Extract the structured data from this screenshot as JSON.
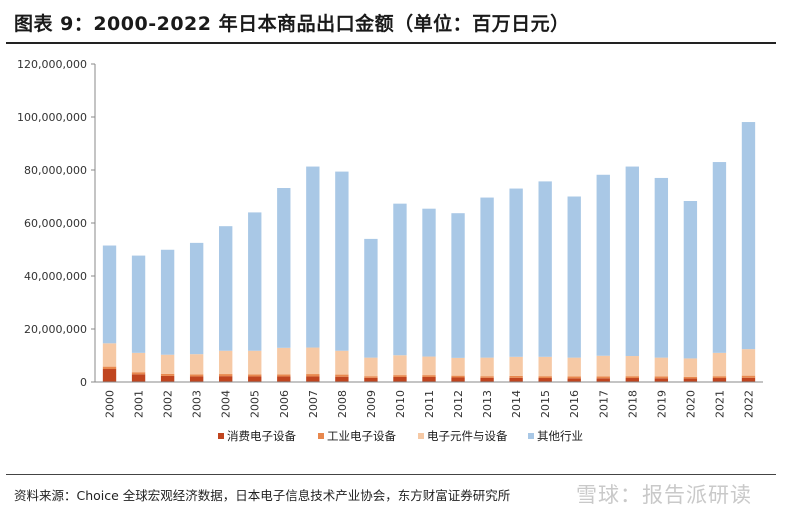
{
  "title": "图表 9：2000-2022 年日本商品出口金额（单位：百万日元）",
  "source": "资料来源：Choice 全球宏观经济数据，日本电子信息技术产业协会，东方财富证券研究所",
  "watermark": "雪球：报告派研读",
  "chart_data": {
    "type": "bar",
    "stacked": true,
    "categories": [
      "2000",
      "2001",
      "2002",
      "2003",
      "2004",
      "2005",
      "2006",
      "2007",
      "2008",
      "2009",
      "2010",
      "2011",
      "2012",
      "2013",
      "2014",
      "2015",
      "2016",
      "2017",
      "2018",
      "2019",
      "2020",
      "2021",
      "2022"
    ],
    "series": [
      {
        "name": "消费电子设备",
        "color": "#c0451f",
        "values": [
          4900000,
          2900000,
          2300000,
          2100000,
          2200000,
          2100000,
          2100000,
          2100000,
          2000000,
          1600000,
          1900000,
          1900000,
          1700000,
          1600000,
          1600000,
          1500000,
          1400000,
          1400000,
          1500000,
          1400000,
          1300000,
          1500000,
          1600000
        ]
      },
      {
        "name": "工业电子设备",
        "color": "#e8884e",
        "values": [
          900000,
          800000,
          800000,
          800000,
          800000,
          800000,
          800000,
          900000,
          800000,
          600000,
          700000,
          700000,
          700000,
          600000,
          700000,
          700000,
          700000,
          700000,
          700000,
          700000,
          600000,
          700000,
          800000
        ]
      },
      {
        "name": "电子元件与设备",
        "color": "#f6c9a5",
        "values": [
          8800000,
          7300000,
          7200000,
          7600000,
          8800000,
          8900000,
          10000000,
          10000000,
          9000000,
          7000000,
          7500000,
          7000000,
          6700000,
          7000000,
          7200000,
          7300000,
          7100000,
          7800000,
          7600000,
          7100000,
          7000000,
          8800000,
          10000000
        ]
      },
      {
        "name": "其他行业",
        "color": "#a9c8e6",
        "values": [
          36900000,
          36700000,
          39600000,
          42000000,
          47000000,
          52200000,
          60300000,
          68300000,
          67600000,
          44800000,
          57200000,
          55800000,
          54600000,
          60400000,
          63500000,
          66200000,
          60800000,
          68300000,
          71500000,
          67800000,
          59400000,
          72000000,
          85700000
        ]
      }
    ],
    "ylim": [
      0,
      120000000
    ],
    "yticks": [
      "0",
      "20,000,000",
      "40,000,000",
      "60,000,000",
      "80,000,000",
      "100,000,000",
      "120,000,000"
    ],
    "ytick_values": [
      0,
      20000000,
      40000000,
      60000000,
      80000000,
      100000000,
      120000000
    ],
    "grid": false,
    "legend_position": "bottom"
  }
}
